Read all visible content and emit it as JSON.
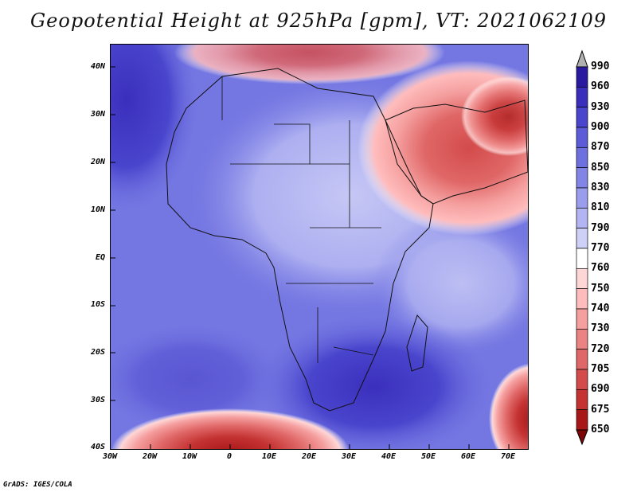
{
  "title": "Geopotential Height at 925hPa [gpm], VT: 2021062109",
  "credit": "GrADS: IGES/COLA",
  "map": {
    "variable": "Geopotential Height",
    "level": "925hPa",
    "units": "gpm",
    "valid_time": "2021062109",
    "lat_labels": [
      "40N",
      "30N",
      "20N",
      "10N",
      "EQ",
      "10S",
      "20S",
      "30S",
      "40S"
    ],
    "lon_labels": [
      "30W",
      "20W",
      "10W",
      "0",
      "10E",
      "20E",
      "30E",
      "40E",
      "50E",
      "60E",
      "70E"
    ]
  },
  "colorbar": {
    "levels": [
      "990",
      "960",
      "930",
      "900",
      "870",
      "850",
      "830",
      "810",
      "790",
      "770",
      "760",
      "750",
      "740",
      "730",
      "720",
      "705",
      "690",
      "675",
      "650"
    ],
    "colors": [
      "#16006e",
      "#2a1aa0",
      "#3a2fbd",
      "#4a45cd",
      "#5c5cd9",
      "#6e70e0",
      "#8285e6",
      "#9a9cec",
      "#b3b5f2",
      "#cfd0f7",
      "#ffffff",
      "#ffd6d6",
      "#ffbcbc",
      "#f59f9f",
      "#ec8383",
      "#e06767",
      "#d34b4b",
      "#c43232",
      "#a81818",
      "#7a0606"
    ],
    "top_arrow_color": "#b0b0b0"
  }
}
